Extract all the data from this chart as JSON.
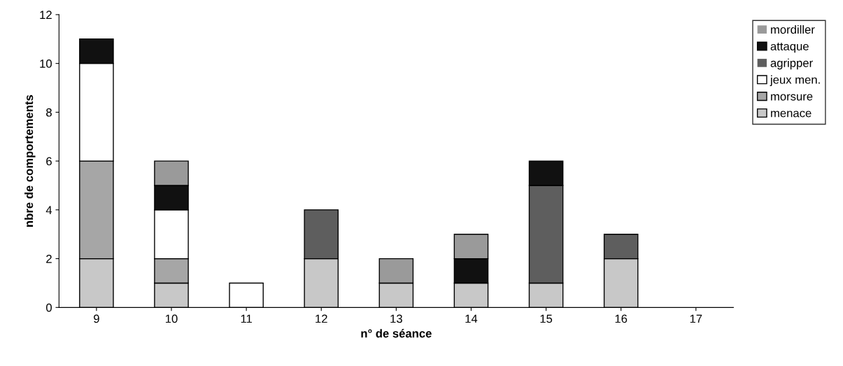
{
  "chart_data": {
    "type": "bar",
    "stacked": true,
    "xlabel": "n° de séance",
    "ylabel": "nbre de comportements",
    "categories": [
      "9",
      "10",
      "11",
      "12",
      "13",
      "14",
      "15",
      "16",
      "17"
    ],
    "series": [
      {
        "name": "menace",
        "color": "#c8c8c8",
        "values": [
          2,
          1,
          0,
          2,
          1,
          1,
          1,
          2,
          0
        ]
      },
      {
        "name": "morsure",
        "color": "#a6a6a6",
        "values": [
          4,
          1,
          0,
          0,
          0,
          0,
          0,
          0,
          0
        ]
      },
      {
        "name": "jeux men.",
        "color": "#ffffff",
        "values": [
          4,
          2,
          1,
          0,
          0,
          0,
          0,
          0,
          0
        ]
      },
      {
        "name": "agripper",
        "color": "#5e5e5e",
        "values": [
          0,
          0,
          0,
          2,
          0,
          0,
          4,
          1,
          0
        ]
      },
      {
        "name": "attaque",
        "color": "#111111",
        "values": [
          1,
          1,
          0,
          0,
          0,
          1,
          1,
          0,
          0
        ]
      },
      {
        "name": "mordiller",
        "color": "#9a9a9a",
        "values": [
          0,
          1,
          0,
          0,
          1,
          1,
          0,
          0,
          0
        ]
      }
    ],
    "ylim": [
      0,
      12
    ],
    "yticks": [
      0,
      2,
      4,
      6,
      8,
      10,
      12
    ],
    "grid": false,
    "legend": "right"
  }
}
